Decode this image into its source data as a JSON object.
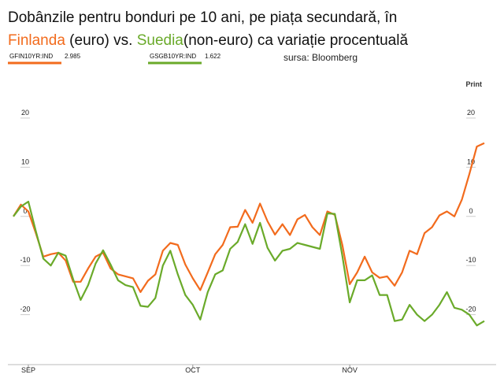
{
  "chart_data": {
    "type": "line",
    "title_line1": "Dobânzile pentru bonduri pe 10 ani, pe piața secundară, în",
    "title_line2": [
      {
        "text": "Finlanda",
        "color": "#f26b1d"
      },
      {
        "text": " (euro) vs. ",
        "color": "#111111"
      },
      {
        "text": "Suedia",
        "color": "#6aaa2a"
      },
      {
        "text": "(non-euro) ca variație procentuală",
        "color": "#111111"
      }
    ],
    "source": "sursa: Bloomberg",
    "print": "Print",
    "categories": [
      null,
      null,
      "SEP",
      null,
      null,
      null,
      null,
      null,
      null,
      null,
      null,
      null,
      null,
      null,
      null,
      null,
      null,
      null,
      null,
      null,
      null,
      null,
      null,
      null,
      "OCT",
      null,
      null,
      null,
      null,
      null,
      null,
      null,
      null,
      null,
      null,
      null,
      null,
      null,
      null,
      null,
      null,
      null,
      null,
      null,
      null,
      "NOV",
      null,
      null,
      null,
      null,
      null,
      null,
      null,
      null,
      null,
      null,
      null,
      null,
      null,
      null,
      null,
      null,
      null,
      null
    ],
    "ylim": [
      -30,
      28
    ],
    "yticks": [
      20,
      10,
      0,
      -10,
      -20
    ],
    "series": [
      {
        "name": "GFIN10YR:IND",
        "legend_value": "2.985",
        "color": "#f26b1d",
        "values": [
          0,
          2.4,
          1,
          -3.4,
          -8.2,
          -7.7,
          -7.4,
          -9,
          -13.3,
          -13.3,
          -10.6,
          -8.2,
          -7.4,
          -10.6,
          -11.8,
          -12.2,
          -12.6,
          -15.4,
          -13.1,
          -11.8,
          -7,
          -5.4,
          -5.8,
          -9.8,
          -12.6,
          -15,
          -11.4,
          -7.7,
          -5.8,
          -2.2,
          -2.1,
          1.3,
          -1.3,
          2.6,
          -1,
          -3.7,
          -1.6,
          -3.8,
          -0.6,
          0.3,
          -2.2,
          -3.8,
          1,
          0.3,
          -5.8,
          -13.8,
          -11.4,
          -8.2,
          -11.4,
          -12.5,
          -12.2,
          -14.1,
          -11.4,
          -7,
          -7.7,
          -3.4,
          -2.2,
          0.2,
          1,
          0,
          3.4,
          8.6,
          14.2,
          14.9
        ]
      },
      {
        "name": "GSGB10YR:IND",
        "legend_value": "1.622",
        "color": "#6aaa2a",
        "values": [
          0,
          2,
          3,
          -3,
          -8.6,
          -10,
          -7.4,
          -8,
          -12.8,
          -17,
          -14,
          -9.6,
          -6.9,
          -9.8,
          -13,
          -14,
          -14.4,
          -18.2,
          -18.4,
          -16.6,
          -10,
          -7,
          -11.8,
          -16,
          -18,
          -21,
          -15.4,
          -11.8,
          -11,
          -6.6,
          -5.2,
          -1.6,
          -5.6,
          -1.3,
          -6.4,
          -9,
          -7,
          -6.6,
          -5.4,
          -5.8,
          -6.2,
          -6.6,
          0.6,
          0.5,
          -8,
          -17.5,
          -13,
          -13,
          -12,
          -16,
          -16,
          -21.3,
          -21,
          -18,
          -20,
          -21.3,
          -20,
          -18,
          -15.4,
          -18.6,
          -19,
          -20,
          -22.2,
          -21.3
        ]
      }
    ]
  }
}
